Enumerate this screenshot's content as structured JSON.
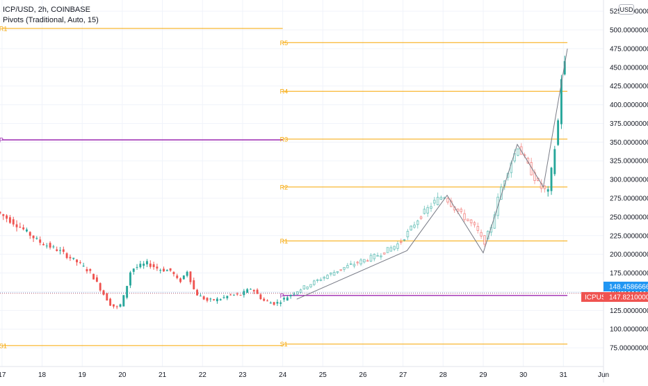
{
  "header": {
    "title": "ICP/USD, 2h, COINBASE",
    "indicator": "Pivots (Traditional, Auto, 15)",
    "currency": "USD"
  },
  "price_badges": {
    "last_price": "148.45866667",
    "symbol": "ICPUSD",
    "symbol_price": "147.82100000"
  },
  "colors": {
    "up": "#26a69a",
    "down": "#ef5350",
    "pivot_level": "#f7a600",
    "pivot_p": "#9c27b0",
    "last_price_badge": "#2196f3",
    "symbol_badge": "#ef5350"
  },
  "chart_data": {
    "type": "candlestick",
    "title": "ICP/USD, 2h, COINBASE",
    "y_axis": {
      "range": [
        50,
        540
      ],
      "ticks": [
        75,
        100,
        125,
        150,
        175,
        200,
        225,
        250,
        275,
        300,
        325,
        350,
        375,
        400,
        425,
        450,
        475,
        500,
        525
      ],
      "tick_labels": [
        "75.00000000",
        "100.00000000",
        "125.00000000",
        "150.00000000",
        "175.00000000",
        "200.00000000",
        "225.00000000",
        "250.00000000",
        "275.00000000",
        "300.00000000",
        "325.00000000",
        "350.00000000",
        "375.00000000",
        "400.00000000",
        "425.00000000",
        "450.00000000",
        "475.00000000",
        "500.00000000",
        "525.00000000"
      ]
    },
    "x_axis": {
      "range": [
        16.95,
        32.0
      ],
      "tick_values": [
        17,
        18,
        19,
        20,
        21,
        22,
        23,
        24,
        25,
        26,
        27,
        28,
        29,
        30,
        31,
        32
      ],
      "tick_labels": [
        "17",
        "18",
        "19",
        "20",
        "21",
        "22",
        "23",
        "24",
        "25",
        "26",
        "27",
        "28",
        "29",
        "30",
        "31",
        "Jun"
      ]
    },
    "pivot_periods": [
      {
        "x_start": 17.0,
        "x_end": 24.0,
        "levels": [
          {
            "label": "R1",
            "value": 502
          },
          {
            "label": "P",
            "value": 353
          },
          {
            "label": "S1",
            "value": 78
          }
        ]
      },
      {
        "x_start": 24.0,
        "x_end": 31.1,
        "levels": [
          {
            "label": "R5",
            "value": 483
          },
          {
            "label": "R4",
            "value": 418
          },
          {
            "label": "R3",
            "value": 354
          },
          {
            "label": "R2",
            "value": 290
          },
          {
            "label": "R1",
            "value": 218
          },
          {
            "label": "P",
            "value": 145
          },
          {
            "label": "S1",
            "value": 80
          }
        ]
      }
    ],
    "zigzag": {
      "x": [
        24.35,
        27.1,
        28.1,
        29.0,
        29.85,
        30.5,
        31.1
      ],
      "y": [
        140,
        205,
        279,
        202,
        347,
        290,
        475
      ]
    },
    "price_lines": {
      "last_price": 148.46,
      "symbol_price": 147.82
    },
    "anchors": {
      "x": [
        16.95,
        17.5,
        18.0,
        18.5,
        19.0,
        19.3,
        19.6,
        19.8,
        20.0,
        20.15,
        20.3,
        20.7,
        21.0,
        21.3,
        21.5,
        21.7,
        21.9,
        22.2,
        22.5,
        22.8,
        23.0,
        23.3,
        23.6,
        23.9,
        24.1,
        24.4,
        24.8,
        25.2,
        25.6,
        26.0,
        26.5,
        27.0,
        27.5,
        27.9,
        28.1,
        28.4,
        28.7,
        28.9,
        29.1,
        29.3,
        29.5,
        29.75,
        29.95,
        30.2,
        30.5,
        30.7,
        30.85,
        31.0,
        31.05
      ],
      "y": [
        257,
        238,
        217,
        205,
        188,
        175,
        148,
        132,
        128,
        148,
        180,
        188,
        180,
        178,
        162,
        178,
        148,
        138,
        140,
        146,
        145,
        155,
        138,
        134,
        140,
        150,
        161,
        172,
        182,
        190,
        200,
        215,
        250,
        272,
        279,
        260,
        245,
        235,
        215,
        240,
        285,
        320,
        345,
        318,
        290,
        283,
        335,
        400,
        455
      ]
    }
  }
}
